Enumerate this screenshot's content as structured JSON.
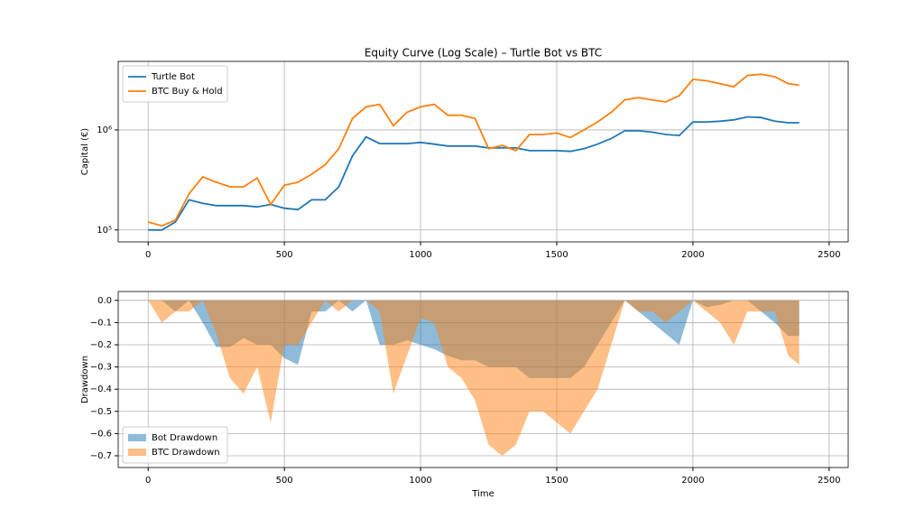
{
  "chart_data": [
    {
      "type": "line",
      "title": "Equity Curve (Log Scale) – Turtle Bot vs BTC",
      "y_label": "Capital (€)",
      "yscale": "log",
      "grid": true,
      "legend": "upper left",
      "x": [
        0,
        50,
        100,
        150,
        200,
        250,
        300,
        350,
        400,
        450,
        500,
        550,
        600,
        650,
        700,
        750,
        800,
        850,
        900,
        950,
        1000,
        1050,
        1100,
        1150,
        1200,
        1250,
        1300,
        1350,
        1400,
        1450,
        1500,
        1550,
        1600,
        1650,
        1700,
        1750,
        1800,
        1850,
        1900,
        1950,
        2000,
        2050,
        2100,
        2150,
        2200,
        2250,
        2300,
        2350,
        2390
      ],
      "series": [
        {
          "name": "Turtle Bot",
          "color": "#1f77b4",
          "values": [
            100000,
            100000,
            120000,
            200000,
            185000,
            175000,
            175000,
            175000,
            170000,
            180000,
            165000,
            160000,
            200000,
            200000,
            270000,
            550000,
            850000,
            730000,
            730000,
            730000,
            750000,
            720000,
            690000,
            690000,
            690000,
            660000,
            660000,
            660000,
            620000,
            620000,
            620000,
            610000,
            650000,
            720000,
            820000,
            980000,
            980000,
            950000,
            900000,
            880000,
            1200000,
            1200000,
            1220000,
            1260000,
            1350000,
            1330000,
            1220000,
            1180000,
            1180000
          ]
        },
        {
          "name": "BTC Buy & Hold",
          "color": "#ff7f0e",
          "values": [
            120000,
            110000,
            125000,
            230000,
            340000,
            300000,
            270000,
            270000,
            330000,
            180000,
            280000,
            300000,
            360000,
            450000,
            650000,
            1300000,
            1700000,
            1800000,
            1100000,
            1500000,
            1700000,
            1800000,
            1400000,
            1400000,
            1300000,
            650000,
            700000,
            620000,
            900000,
            900000,
            930000,
            840000,
            1000000,
            1200000,
            1500000,
            2000000,
            2100000,
            2000000,
            1900000,
            2200000,
            3200000,
            3100000,
            2900000,
            2700000,
            3500000,
            3600000,
            3400000,
            2900000,
            2800000
          ]
        }
      ],
      "xlim": [
        -110,
        2570
      ],
      "xticks": [
        0,
        500,
        1000,
        1500,
        2000,
        2500
      ],
      "ylim": [
        76000,
        4840000
      ],
      "yticks": [
        {
          "value": 100000,
          "label": "10⁵"
        },
        {
          "value": 1000000,
          "label": "10⁶"
        }
      ]
    },
    {
      "type": "area",
      "x_label": "Time",
      "y_label": "Drawdown",
      "grid": true,
      "legend": "lower left",
      "alpha": 0.5,
      "x": [
        0,
        50,
        100,
        150,
        200,
        250,
        300,
        350,
        400,
        450,
        500,
        550,
        600,
        650,
        700,
        750,
        800,
        850,
        900,
        950,
        1000,
        1050,
        1100,
        1150,
        1200,
        1250,
        1300,
        1350,
        1400,
        1450,
        1500,
        1550,
        1600,
        1650,
        1700,
        1750,
        1800,
        1850,
        1900,
        1950,
        2000,
        2050,
        2100,
        2150,
        2200,
        2250,
        2300,
        2350,
        2390
      ],
      "series": [
        {
          "name": "Bot Drawdown",
          "color": "#1f77b4",
          "values": [
            0,
            0,
            -0.05,
            0,
            -0.1,
            -0.21,
            -0.21,
            -0.17,
            -0.2,
            -0.2,
            -0.26,
            -0.29,
            -0.05,
            -0.05,
            0,
            -0.05,
            0,
            -0.2,
            -0.2,
            -0.18,
            -0.2,
            -0.22,
            -0.25,
            -0.27,
            -0.27,
            -0.3,
            -0.3,
            -0.3,
            -0.35,
            -0.35,
            -0.35,
            -0.35,
            -0.3,
            -0.2,
            -0.1,
            0,
            -0.05,
            -0.1,
            -0.15,
            -0.2,
            0,
            -0.03,
            -0.02,
            0,
            0,
            -0.05,
            -0.1,
            -0.16,
            -0.16
          ]
        },
        {
          "name": "BTC Drawdown",
          "color": "#ff7f0e",
          "values": [
            0,
            -0.1,
            -0.05,
            -0.05,
            0,
            -0.15,
            -0.35,
            -0.42,
            -0.3,
            -0.55,
            -0.2,
            -0.2,
            -0.1,
            0,
            -0.05,
            0,
            0,
            -0.05,
            -0.42,
            -0.25,
            -0.08,
            -0.1,
            -0.3,
            -0.35,
            -0.45,
            -0.65,
            -0.7,
            -0.65,
            -0.5,
            -0.5,
            -0.55,
            -0.6,
            -0.5,
            -0.4,
            -0.2,
            0,
            -0.05,
            -0.05,
            -0.1,
            -0.05,
            0,
            -0.05,
            -0.1,
            -0.2,
            -0.05,
            -0.05,
            -0.05,
            -0.25,
            -0.29
          ]
        }
      ],
      "xlim": [
        -110,
        2570
      ],
      "xticks": [
        0,
        500,
        1000,
        1500,
        2000,
        2500
      ],
      "ylim": [
        -0.753,
        0.04
      ],
      "yticks": [
        {
          "value": 0,
          "label": "0.0"
        },
        {
          "value": -0.1,
          "label": "−0.1"
        },
        {
          "value": -0.2,
          "label": "−0.2"
        },
        {
          "value": -0.3,
          "label": "−0.3"
        },
        {
          "value": -0.4,
          "label": "−0.4"
        },
        {
          "value": -0.5,
          "label": "−0.5"
        },
        {
          "value": -0.6,
          "label": "−0.6"
        },
        {
          "value": -0.7,
          "label": "−0.7"
        }
      ]
    }
  ]
}
